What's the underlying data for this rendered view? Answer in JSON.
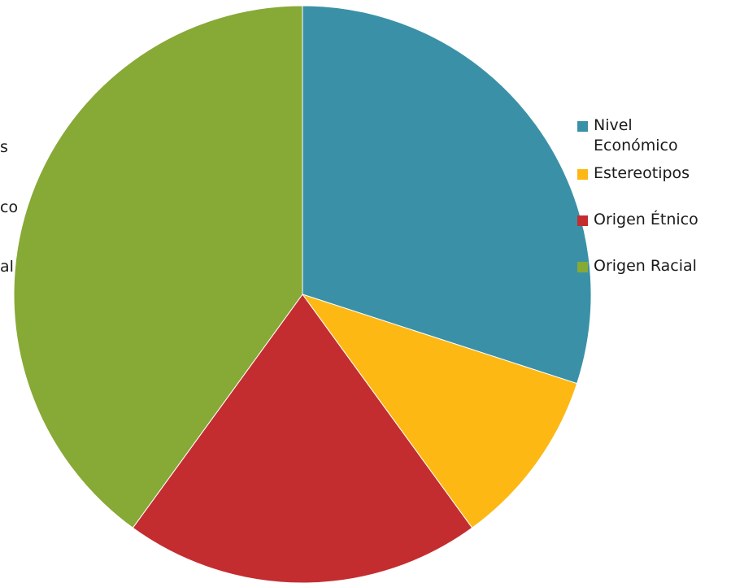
{
  "chart_data": {
    "type": "pie",
    "title": "",
    "categories": [
      "Nivel Económico",
      "Estereotipos",
      "Origen Étnico",
      "Origen Racial"
    ],
    "values": [
      30,
      10,
      20,
      40
    ],
    "colors": [
      "#3A91A7",
      "#FDB813",
      "#C32D30",
      "#87A936"
    ],
    "legend_position": "right",
    "legend": [
      {
        "label": "Nivel Económico",
        "line1": "Nivel",
        "line2": "Económico",
        "color": "#3A91A7"
      },
      {
        "label": "Estereotipos",
        "color": "#FDB813"
      },
      {
        "label": "Origen Étnico",
        "color": "#C32D30"
      },
      {
        "label": "Origen Racial",
        "color": "#87A936"
      }
    ],
    "left_edge_fragments": [
      "s",
      "co",
      "al"
    ]
  }
}
